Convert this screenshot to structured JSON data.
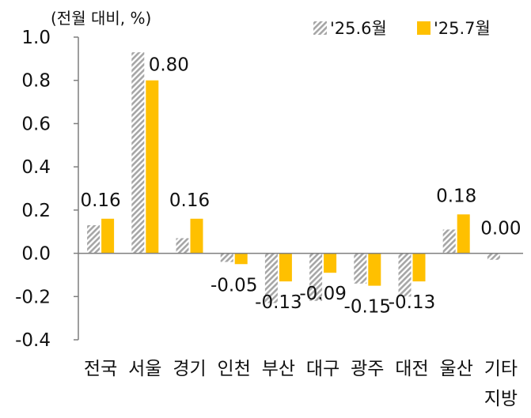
{
  "chart_data": {
    "type": "bar",
    "unit_label": "(전월 대비, %)",
    "categories": [
      "전국",
      "서울",
      "경기",
      "인천",
      "부산",
      "대구",
      "광주",
      "대전",
      "울산",
      "기타\n지방"
    ],
    "series": [
      {
        "name": "'25.6월",
        "values": [
          0.13,
          0.93,
          0.07,
          -0.04,
          -0.23,
          -0.22,
          -0.14,
          -0.2,
          0.11,
          -0.03
        ],
        "color": "#a6a6a6",
        "pattern": "diagonal-hatch"
      },
      {
        "name": "'25.7월",
        "values": [
          0.16,
          0.8,
          0.16,
          -0.05,
          -0.13,
          -0.09,
          -0.15,
          -0.13,
          0.18,
          0.0
        ],
        "color": "#ffc000",
        "pattern": "solid"
      }
    ],
    "data_labels": [
      "0.16",
      "0.80",
      "0.16",
      "-0.05",
      "-0.13",
      "-0.09",
      "-0.15",
      "-0.13",
      "0.18",
      "0.00"
    ],
    "y_ticks": [
      "1.0",
      "0.8",
      "0.6",
      "0.4",
      "0.2",
      "0.0",
      "-0.2",
      "-0.4"
    ],
    "ylim": [
      -0.4,
      1.0
    ],
    "grid": false,
    "legend_position": "top-right"
  }
}
